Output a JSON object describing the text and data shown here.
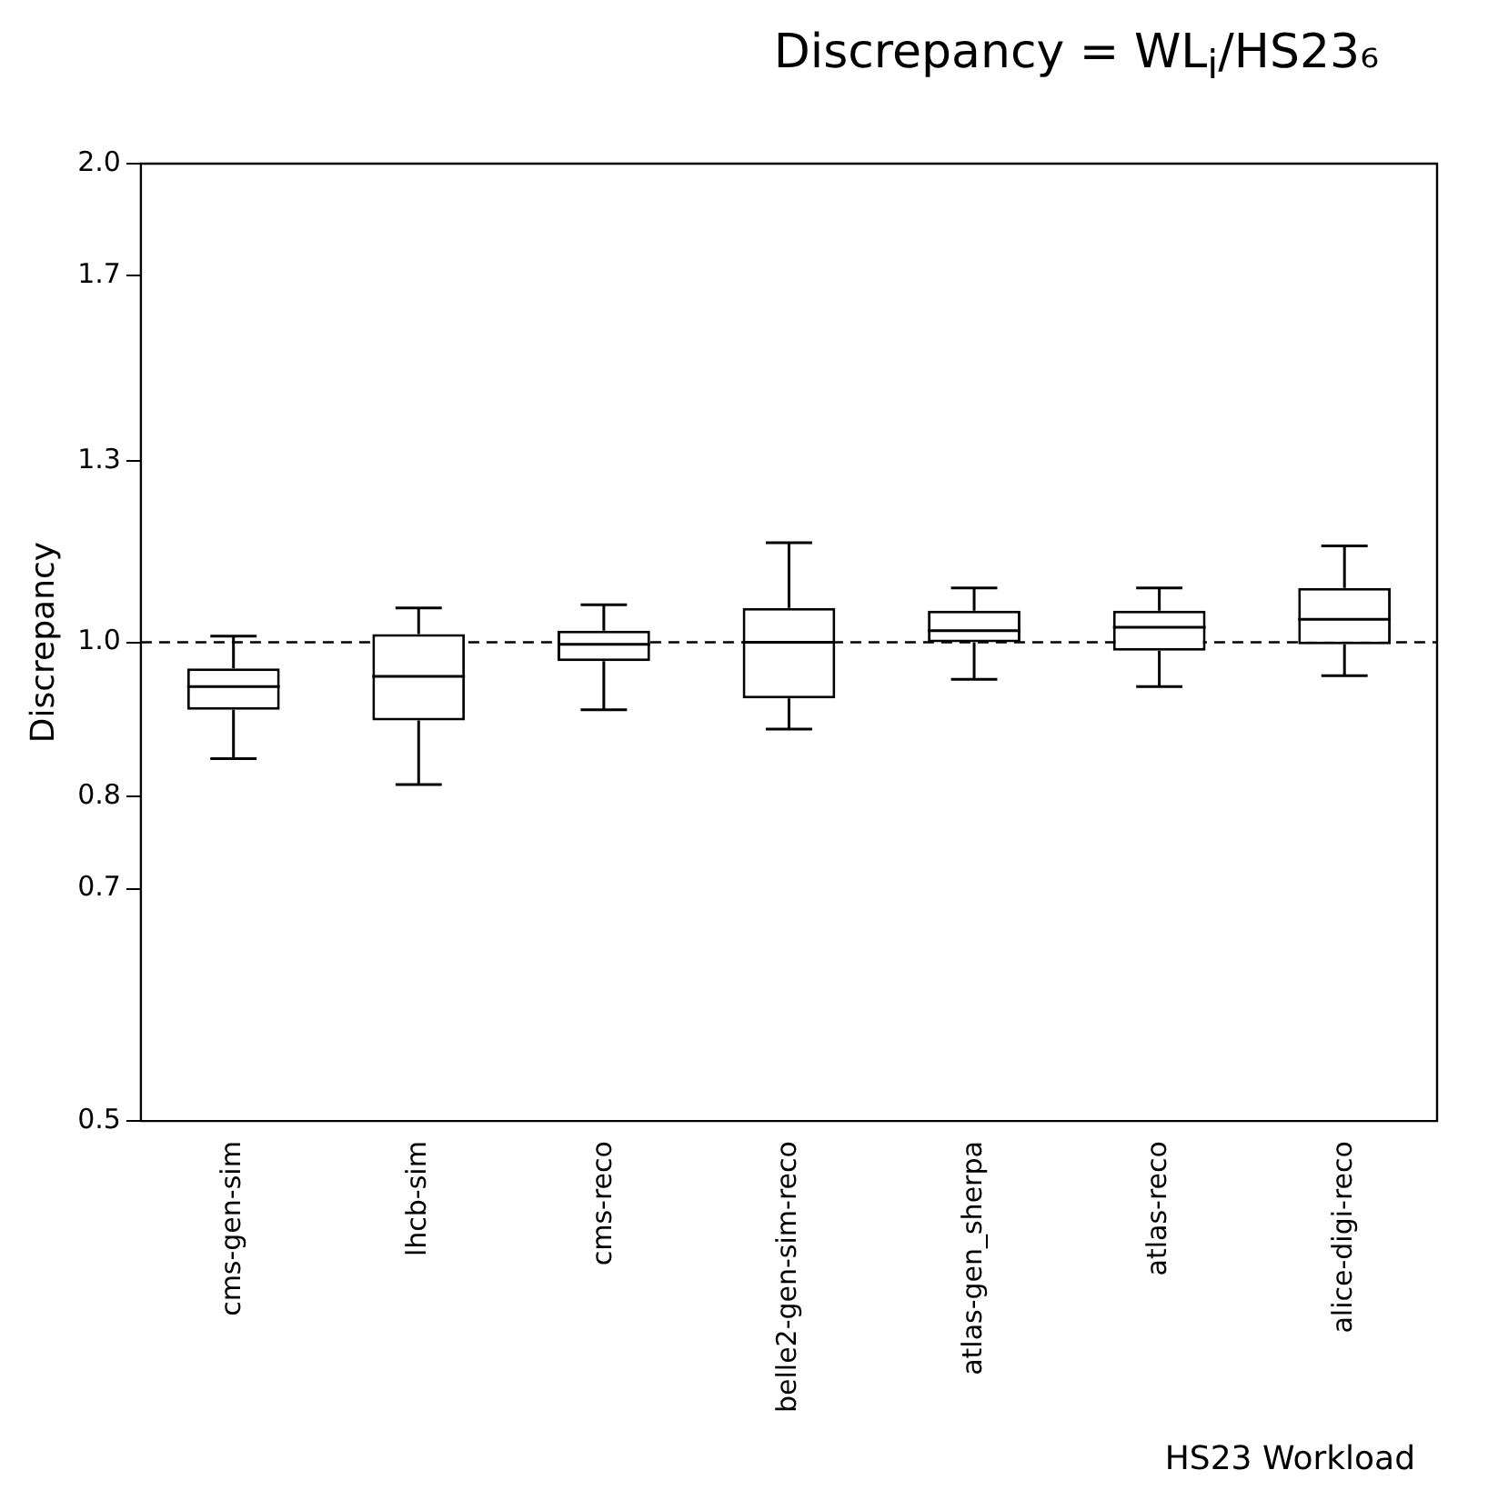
{
  "chart_data": {
    "type": "box",
    "title": "Discrepancy = WL$_{i}$/HS23₆",
    "xlabel": "HS23 Workload",
    "ylabel": "Discrepancy",
    "categories": [
      "cms-gen-sim",
      "lhcb-sim",
      "cms-reco",
      "belle2-gen-sim-reco",
      "atlas-gen_sherpa",
      "atlas-reco",
      "alice-digi-reco"
    ],
    "boxes": [
      {
        "low": 0.845,
        "q1": 0.907,
        "median": 0.938,
        "q3": 0.963,
        "high": 1.009
      },
      {
        "low": 0.814,
        "q1": 0.893,
        "median": 0.952,
        "q3": 1.012,
        "high": 1.051
      },
      {
        "low": 0.907,
        "q1": 0.973,
        "median": 0.997,
        "q3": 1.017,
        "high": 1.056
      },
      {
        "low": 0.882,
        "q1": 0.922,
        "median": 1.0,
        "q3": 1.051,
        "high": 1.155
      },
      {
        "low": 0.948,
        "q1": 1.0,
        "median": 1.017,
        "q3": 1.047,
        "high": 1.082
      },
      {
        "low": 0.938,
        "q1": 0.988,
        "median": 1.022,
        "q3": 1.047,
        "high": 1.082
      },
      {
        "low": 0.953,
        "q1": 0.997,
        "median": 1.034,
        "q3": 1.082,
        "high": 1.15
      }
    ],
    "color": "#000000",
    "log": true,
    "ylim": [
      0.5,
      2.0
    ],
    "yticks": [
      {
        "value": 0.5,
        "label": "0.5"
      },
      {
        "value": 0.7,
        "label": "0.7"
      },
      {
        "value": 0.8,
        "label": "0.8"
      },
      {
        "value": 1.0,
        "label": "1.0"
      },
      {
        "value": 1.3,
        "label": "1.3"
      },
      {
        "value": 1.7,
        "label": "1.7"
      },
      {
        "value": 2.0,
        "label": "2.0"
      }
    ],
    "ref_lines": [
      {
        "axis": "y",
        "value": 1.0,
        "line_style": "dashed",
        "color": "#000000"
      }
    ],
    "grid": false,
    "legend": false
  }
}
